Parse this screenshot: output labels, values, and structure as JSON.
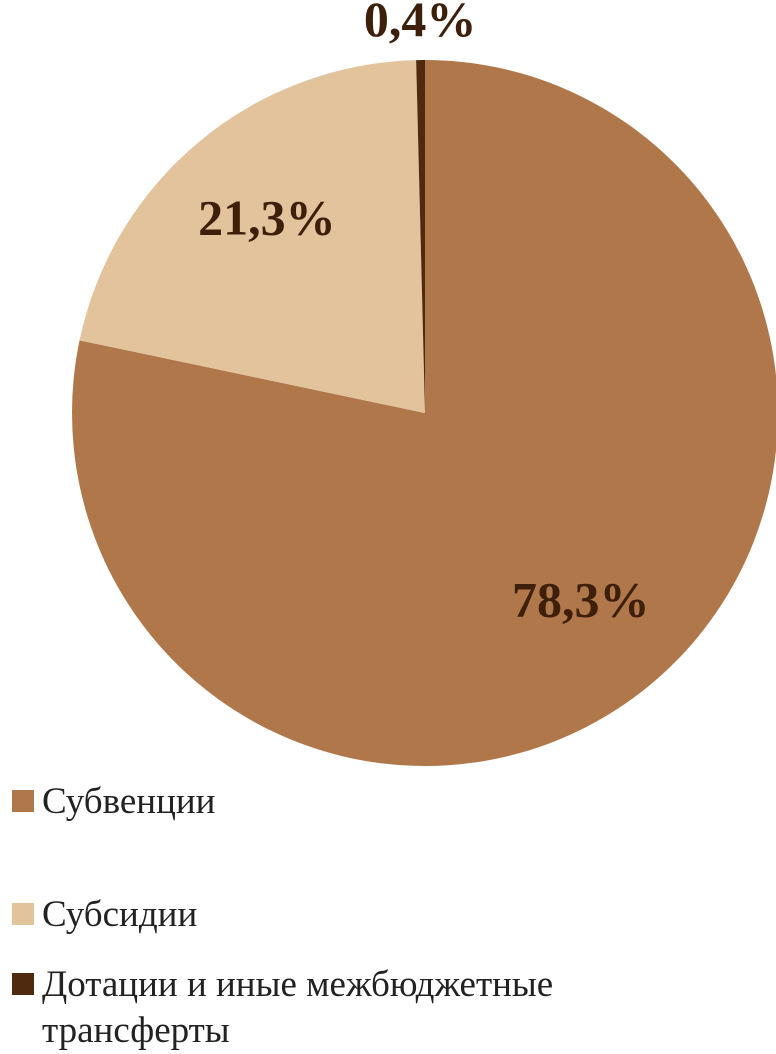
{
  "chart_data": {
    "type": "pie",
    "categories": [
      "Субвенции",
      "Субсидии",
      "Дотации и иные межбюджетные трансферты"
    ],
    "values": [
      78.3,
      21.3,
      0.4
    ],
    "value_labels": [
      "78,3%",
      "21,3%",
      "0,4%"
    ],
    "colors": [
      "#b0784a",
      "#e2c39c",
      "#4f2a0f"
    ]
  }
}
